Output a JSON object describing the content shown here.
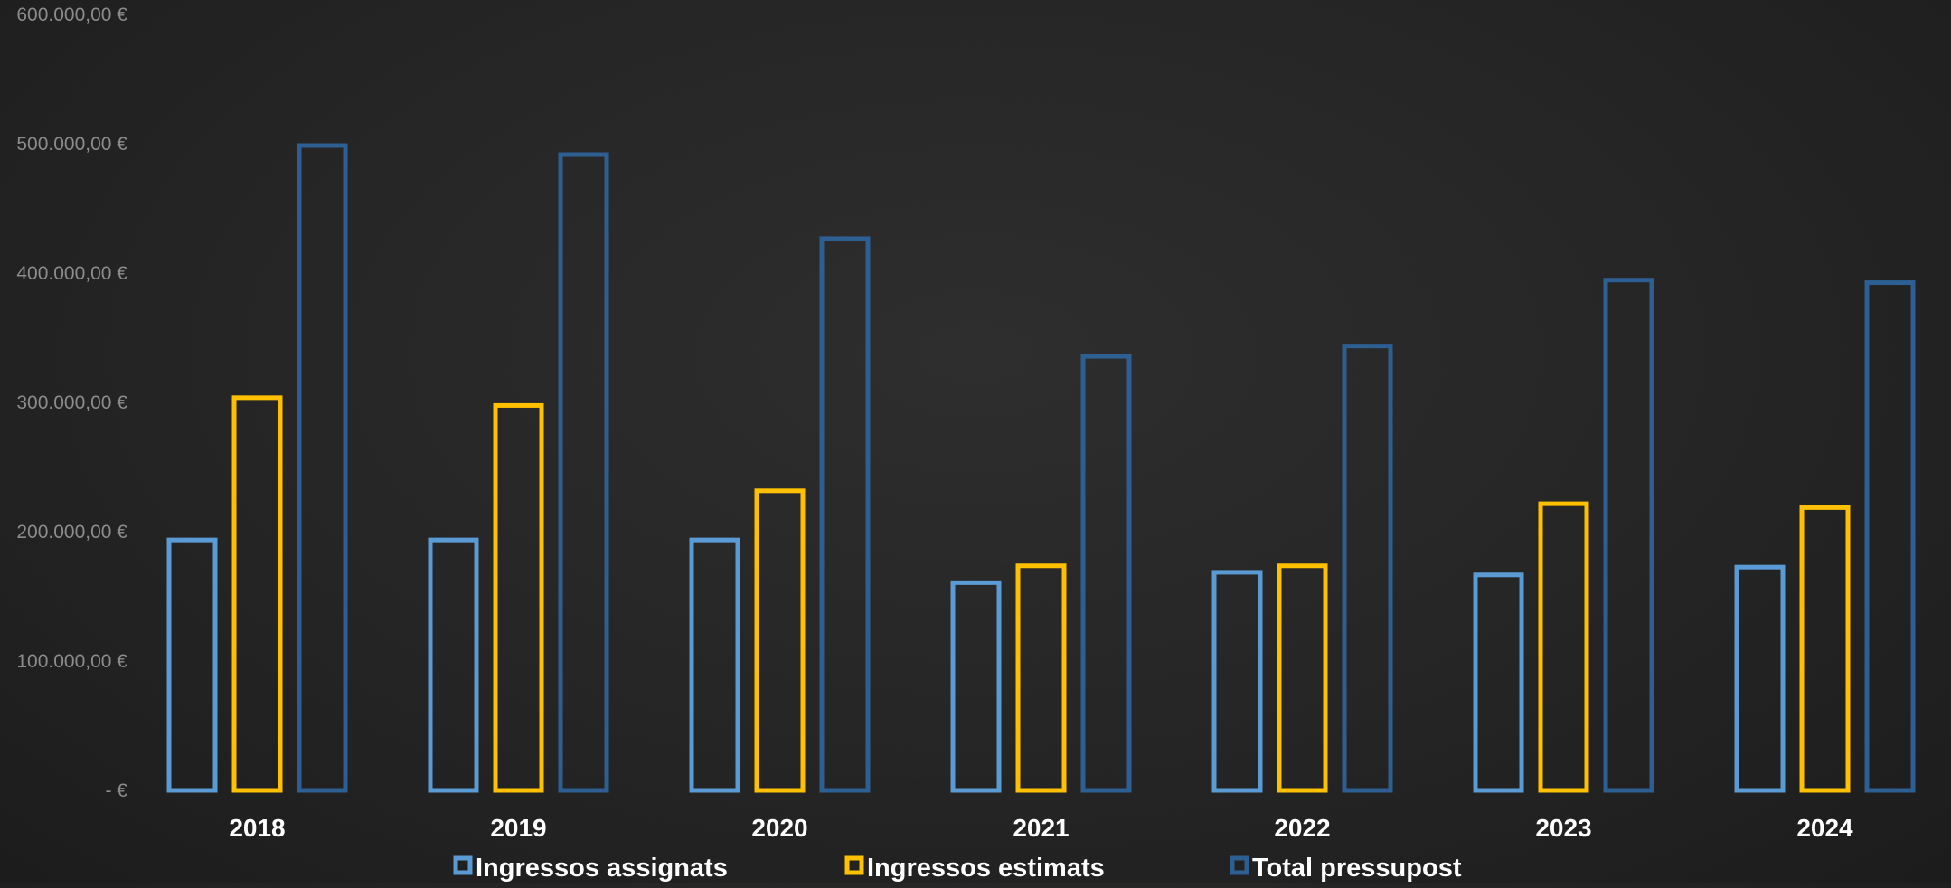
{
  "chart_data": {
    "type": "bar",
    "title": "",
    "xlabel": "",
    "ylabel": "",
    "categories": [
      "2018",
      "2019",
      "2020",
      "2021",
      "2022",
      "2023",
      "2024"
    ],
    "series": [
      {
        "name": "Ingressos assignats",
        "color": "#5b9bd5",
        "values": [
          195000,
          195000,
          195000,
          162000,
          170000,
          168000,
          174000
        ]
      },
      {
        "name": "Ingressos estimats",
        "color": "#ffc000",
        "values": [
          305000,
          299000,
          233000,
          175000,
          175000,
          223000,
          220000
        ]
      },
      {
        "name": "Total pressupost",
        "color": "#2e5f93",
        "values": [
          500000,
          493000,
          428000,
          337000,
          345000,
          396000,
          394000
        ]
      }
    ],
    "ylim": [
      0,
      600000
    ],
    "yticks": [
      0,
      100000,
      200000,
      300000,
      400000,
      500000,
      600000
    ],
    "ytick_labels": [
      "-  €",
      "100.000,00 €",
      "200.000,00 €",
      "300.000,00 €",
      "400.000,00 €",
      "500.000,00 €",
      "600.000,00 €"
    ],
    "grid": false,
    "legend_position": "bottom"
  }
}
